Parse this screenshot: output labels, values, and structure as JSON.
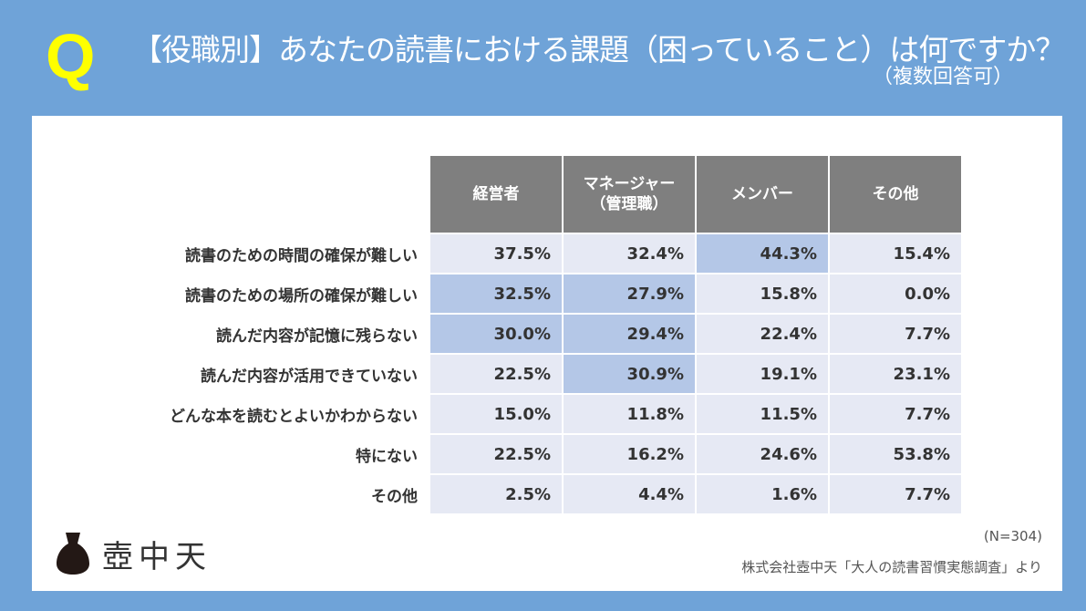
{
  "header": {
    "q": "Q",
    "title": "【役職別】あなたの読書における課題（困っていること）は何ですか？",
    "subtitle": "（複数回答可）"
  },
  "chart_data": {
    "type": "table",
    "columns": [
      "経営者",
      "マネージャー（管理職）",
      "メンバー",
      "その他"
    ],
    "column_lines": [
      [
        "経営者"
      ],
      [
        "マネージャー",
        "（管理職）"
      ],
      [
        "メンバー"
      ],
      [
        "その他"
      ]
    ],
    "rows": [
      {
        "label": "読書のための時間の確保が難しい",
        "values": [
          "37.5%",
          "32.4%",
          "44.3%",
          "15.4%"
        ],
        "highlight": [
          false,
          false,
          true,
          false
        ]
      },
      {
        "label": "読書のための場所の確保が難しい",
        "values": [
          "32.5%",
          "27.9%",
          "15.8%",
          "0.0%"
        ],
        "highlight": [
          true,
          true,
          false,
          false
        ]
      },
      {
        "label": "読んだ内容が記憶に残らない",
        "values": [
          "30.0%",
          "29.4%",
          "22.4%",
          "7.7%"
        ],
        "highlight": [
          true,
          true,
          false,
          false
        ]
      },
      {
        "label": "読んだ内容が活用できていない",
        "values": [
          "22.5%",
          "30.9%",
          "19.1%",
          "23.1%"
        ],
        "highlight": [
          false,
          true,
          false,
          false
        ]
      },
      {
        "label": "どんな本を読むとよいかわからない",
        "values": [
          "15.0%",
          "11.8%",
          "11.5%",
          "7.7%"
        ],
        "highlight": [
          false,
          false,
          false,
          false
        ]
      },
      {
        "label": "特にない",
        "values": [
          "22.5%",
          "16.2%",
          "24.6%",
          "53.8%"
        ],
        "highlight": [
          false,
          false,
          false,
          false
        ]
      },
      {
        "label": "その他",
        "values": [
          "2.5%",
          "4.4%",
          "1.6%",
          "7.7%"
        ],
        "highlight": [
          false,
          false,
          false,
          false
        ]
      }
    ]
  },
  "footer": {
    "logo": "壺中天",
    "n": "(N=304)",
    "source": "株式会社壺中天「大人の読書習慣実態調査」より"
  },
  "colors": {
    "bg": "#6fa3d8",
    "header": "#7f7f7f",
    "cell": "#e6e9f4",
    "highlight": "#b4c7e7",
    "q": "#ffff00"
  }
}
